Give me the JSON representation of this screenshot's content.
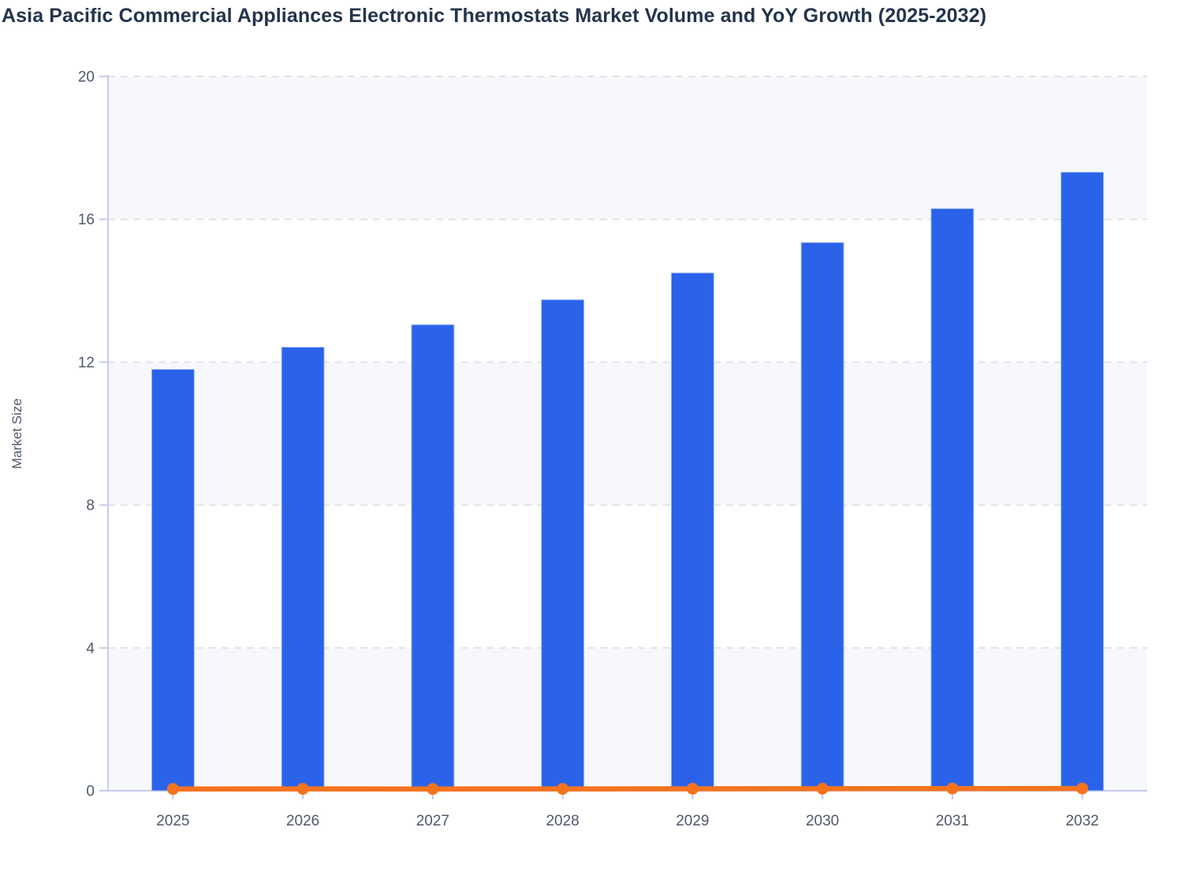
{
  "chart_data": {
    "type": "bar+line",
    "title": "Asia Pacific Commercial Appliances Electronic Thermostats Market Volume and YoY Growth (2025-2032)",
    "categories": [
      "2025",
      "2026",
      "2027",
      "2028",
      "2029",
      "2030",
      "2031",
      "2032"
    ],
    "series": [
      {
        "name": "Market Volume",
        "type": "bar",
        "color": "#2a63ea",
        "values": [
          11.8,
          12.42,
          13.05,
          13.75,
          14.5,
          15.35,
          16.3,
          17.32
        ]
      },
      {
        "name": "YoY Growth",
        "type": "line",
        "color": "#f4731f",
        "values": [
          0.05,
          0.053,
          0.05,
          0.053,
          0.055,
          0.059,
          0.061,
          0.063
        ]
      }
    ],
    "xlabel": "",
    "ylabel": "Market Size",
    "ylim": [
      0,
      20
    ],
    "yticks": [
      0,
      4,
      8,
      12,
      16,
      20
    ],
    "grid": "horizontal dashed lines at y ticks",
    "legend": "none",
    "background_bands": "alternating shaded bands between y gridlines"
  },
  "theme": {
    "bar_color": "#2a63ea",
    "bar_edge_color": "#a9c2f5",
    "line_color": "#f4731f",
    "band_color": "#f7f8fb",
    "grid_color": "#e1e3e8",
    "axis_color": "#c7cce9",
    "tick_label_color": "#4f596b",
    "title_color": "#24344d"
  }
}
